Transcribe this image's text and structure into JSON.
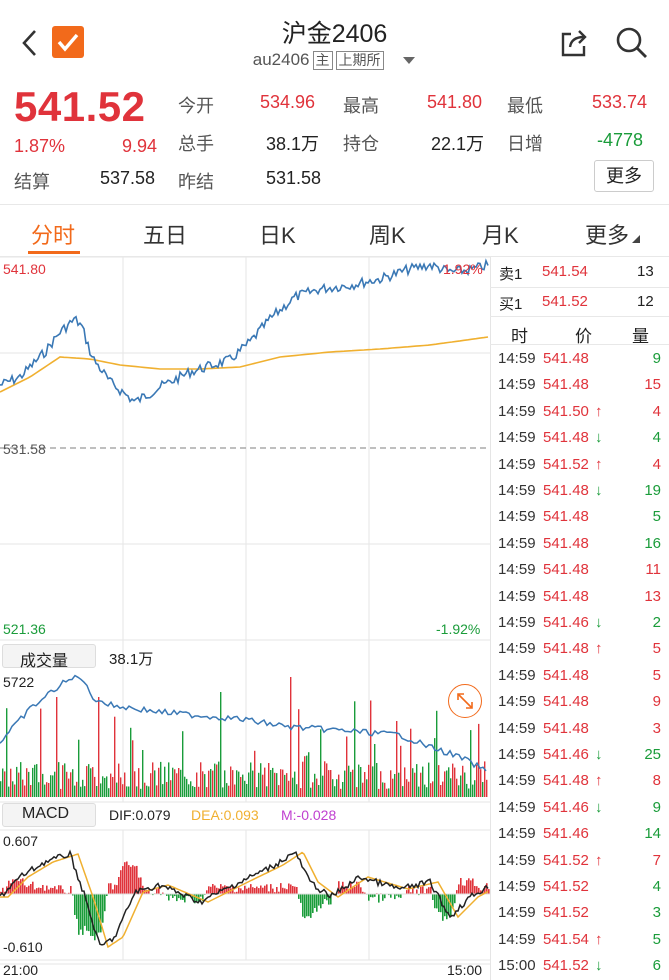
{
  "header": {
    "title": "沪金2406",
    "code": "au2406",
    "main_tag": "主",
    "exchange": "上期所"
  },
  "quote": {
    "price": "541.52",
    "change_pct": "1.87%",
    "change": "9.94",
    "open_label": "今开",
    "open": "534.96",
    "high_label": "最高",
    "high": "541.80",
    "low_label": "最低",
    "low": "533.74",
    "volume_label": "总手",
    "volume": "38.1万",
    "oi_label": "持仓",
    "oi": "22.1万",
    "daily_inc_label": "日增",
    "daily_inc": "-4778",
    "settle_label": "结算",
    "settle": "537.58",
    "prev_settle_label": "昨结",
    "prev_settle": "531.58",
    "more_button": "更多"
  },
  "tabs": [
    "分时",
    "五日",
    "日K",
    "周K",
    "月K",
    "更多"
  ],
  "intraday": {
    "high_price": "541.80",
    "low_price": "521.36",
    "prev_close": "531.58",
    "high_pct": "1.92%",
    "low_pct": "-1.92%",
    "time_start": "21:00",
    "time_end": "15:00"
  },
  "volume_panel": {
    "label": "成交量",
    "value": "38.1万",
    "max": "5722"
  },
  "macd_panel": {
    "label": "MACD",
    "dif": "DIF:0.079",
    "dea": "DEA:0.093",
    "m": "M:-0.028",
    "max": "0.607",
    "min": "-0.610"
  },
  "order_book": {
    "sell1_label": "卖1",
    "sell1_price": "541.54",
    "sell1_vol": "13",
    "buy1_label": "买1",
    "buy1_price": "541.52",
    "buy1_vol": "12",
    "col_time": "时",
    "col_price": "价",
    "col_vol": "量"
  },
  "ticks": [
    {
      "time": "14:59",
      "price": "541.48",
      "arrow": "",
      "vol": "9",
      "color": "green"
    },
    {
      "time": "14:59",
      "price": "541.48",
      "arrow": "",
      "vol": "15",
      "color": "red"
    },
    {
      "time": "14:59",
      "price": "541.50",
      "arrow": "↑",
      "vol": "4",
      "color": "red"
    },
    {
      "time": "14:59",
      "price": "541.48",
      "arrow": "↓",
      "vol": "4",
      "color": "green"
    },
    {
      "time": "14:59",
      "price": "541.52",
      "arrow": "↑",
      "vol": "4",
      "color": "red"
    },
    {
      "time": "14:59",
      "price": "541.48",
      "arrow": "↓",
      "vol": "19",
      "color": "green"
    },
    {
      "time": "14:59",
      "price": "541.48",
      "arrow": "",
      "vol": "5",
      "color": "green"
    },
    {
      "time": "14:59",
      "price": "541.48",
      "arrow": "",
      "vol": "16",
      "color": "green"
    },
    {
      "time": "14:59",
      "price": "541.48",
      "arrow": "",
      "vol": "11",
      "color": "red"
    },
    {
      "time": "14:59",
      "price": "541.48",
      "arrow": "",
      "vol": "13",
      "color": "red"
    },
    {
      "time": "14:59",
      "price": "541.46",
      "arrow": "↓",
      "vol": "2",
      "color": "green"
    },
    {
      "time": "14:59",
      "price": "541.48",
      "arrow": "↑",
      "vol": "5",
      "color": "red"
    },
    {
      "time": "14:59",
      "price": "541.48",
      "arrow": "",
      "vol": "5",
      "color": "red"
    },
    {
      "time": "14:59",
      "price": "541.48",
      "arrow": "",
      "vol": "9",
      "color": "red"
    },
    {
      "time": "14:59",
      "price": "541.48",
      "arrow": "",
      "vol": "3",
      "color": "red"
    },
    {
      "time": "14:59",
      "price": "541.46",
      "arrow": "↓",
      "vol": "25",
      "color": "green"
    },
    {
      "time": "14:59",
      "price": "541.48",
      "arrow": "↑",
      "vol": "8",
      "color": "red"
    },
    {
      "time": "14:59",
      "price": "541.46",
      "arrow": "↓",
      "vol": "9",
      "color": "green"
    },
    {
      "time": "14:59",
      "price": "541.46",
      "arrow": "",
      "vol": "14",
      "color": "green"
    },
    {
      "time": "14:59",
      "price": "541.52",
      "arrow": "↑",
      "vol": "7",
      "color": "red"
    },
    {
      "time": "14:59",
      "price": "541.52",
      "arrow": "",
      "vol": "4",
      "color": "green"
    },
    {
      "time": "14:59",
      "price": "541.52",
      "arrow": "",
      "vol": "3",
      "color": "green"
    },
    {
      "time": "14:59",
      "price": "541.54",
      "arrow": "↑",
      "vol": "5",
      "color": "green"
    },
    {
      "time": "15:00",
      "price": "541.52",
      "arrow": "↓",
      "vol": "6",
      "color": "green"
    }
  ],
  "colors": {
    "up": "#e0333b",
    "down": "#1a9c3a",
    "accent": "#f26a1b",
    "avg": "#f0b030",
    "price_line": "#3a78b5"
  }
}
